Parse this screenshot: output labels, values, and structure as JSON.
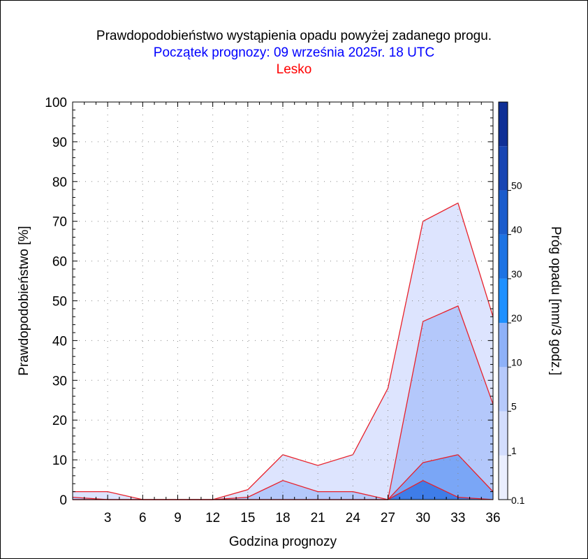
{
  "header": {
    "title": "Prawdopodobieństwo wystąpienia opadu powyżej zadanego progu.",
    "subtitle": "Początek prognozy: 09 września 2025r. 18 UTC",
    "location": "Lesko"
  },
  "chart_data": {
    "type": "area",
    "title": "Prawdopodobieństwo wystąpienia opadu powyżej zadanego progu.",
    "xlabel": "Godzina prognozy",
    "ylabel": "Prawdopodobieństwo [%]",
    "colorbar_label": "Próg opadu [mm/3 godz.]",
    "xlim": [
      0,
      36
    ],
    "ylim": [
      0,
      100
    ],
    "x_ticks": [
      "3",
      "6",
      "9",
      "12",
      "15",
      "18",
      "21",
      "24",
      "27",
      "30",
      "33",
      "36"
    ],
    "y_ticks": [
      "0",
      "10",
      "20",
      "30",
      "40",
      "50",
      "60",
      "70",
      "80",
      "90",
      "100"
    ],
    "x": [
      0,
      3,
      6,
      9,
      12,
      15,
      18,
      21,
      24,
      27,
      30,
      33,
      36
    ],
    "grid": true,
    "line_color": "#e8202a",
    "series": [
      {
        "name": "0.1",
        "color": "#dde4fe",
        "values": [
          2,
          2,
          0,
          0,
          0,
          2.5,
          11.3,
          8.6,
          11.3,
          28,
          70,
          74.6,
          46
        ]
      },
      {
        "name": "1",
        "color": "#b4c8fb",
        "values": [
          0.6,
          0,
          0,
          0,
          0,
          0.6,
          4.8,
          2,
          2,
          0,
          44.8,
          48.7,
          24
        ]
      },
      {
        "name": "5",
        "color": "#7aa6f6",
        "values": [
          0,
          0,
          0,
          0,
          0,
          0,
          0,
          0,
          0,
          0,
          9.3,
          11.3,
          2
        ]
      },
      {
        "name": "10",
        "color": "#3f7de8",
        "values": [
          0,
          0,
          0,
          0,
          0,
          0,
          0,
          0,
          0,
          0,
          4.8,
          0.6,
          0
        ]
      }
    ],
    "colorbar": {
      "labels": [
        "0.1",
        "1",
        "5",
        "10",
        "20",
        "30",
        "40",
        "50"
      ],
      "colors": [
        "#eaeefe",
        "#d3ddfd",
        "#b6c9fb",
        "#8eb1f8",
        "#1e90ff",
        "#1d73e3",
        "#1b5ccc",
        "#1845b3",
        "#0f2f96"
      ]
    }
  }
}
